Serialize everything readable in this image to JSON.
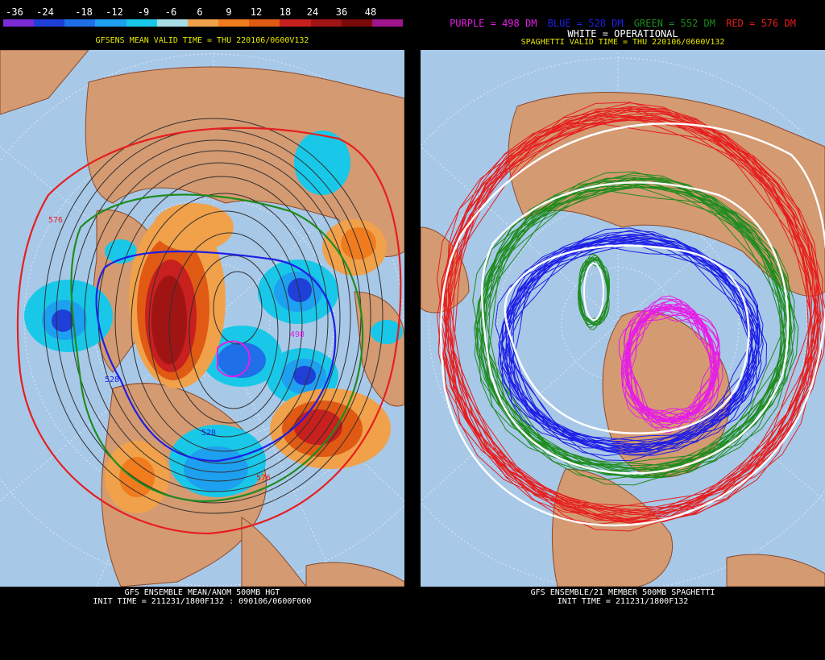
{
  "left": {
    "colorbar": {
      "labels": [
        "-36",
        "-24",
        "-18",
        "-12",
        "-9",
        "-6",
        "6",
        "9",
        "12",
        "18",
        "24",
        "36",
        "48"
      ],
      "colors": [
        "#7a2ad6",
        "#1e3fd8",
        "#1e6fe8",
        "#1ea0f0",
        "#19c8e8",
        "#a8dde6",
        "#f0a14a",
        "#f07c1e",
        "#e05a14",
        "#c8201e",
        "#a01414",
        "#7a0a0a",
        "#a0148c"
      ]
    },
    "valid_time": "GFSENS MEAN VALID TIME = THU 220106/0600V132",
    "contour_labels": [
      "528",
      "528",
      "498",
      "576",
      "576"
    ],
    "caption_title": "GFS ENSEMBLE MEAN/ANOM 500MB HGT",
    "caption_init": "INIT TIME = 211231/1800F132 : 090106/0600F000"
  },
  "right": {
    "legend": [
      {
        "text": "PURPLE = 498 DM",
        "color": "#e61ee6"
      },
      {
        "text": "BLUE = 528 DM",
        "color": "#1e1ee6"
      },
      {
        "text": "GREEN = 552 DM",
        "color": "#1e8c1e"
      },
      {
        "text": "RED = 576 DM",
        "color": "#e61e1e"
      }
    ],
    "operational": "WHITE = OPERATIONAL",
    "valid_time": "SPAGHETTI VALID TIME = THU 220106/0600V132",
    "caption_title": "GFS ENSEMBLE/21 MEMBER 500MB SPAGHETTI",
    "caption_init": "INIT TIME = 211231/1800F132"
  },
  "colors": {
    "ocean": "#a8c8e8",
    "land": "#d49a72",
    "border": "#8a4a2a"
  }
}
